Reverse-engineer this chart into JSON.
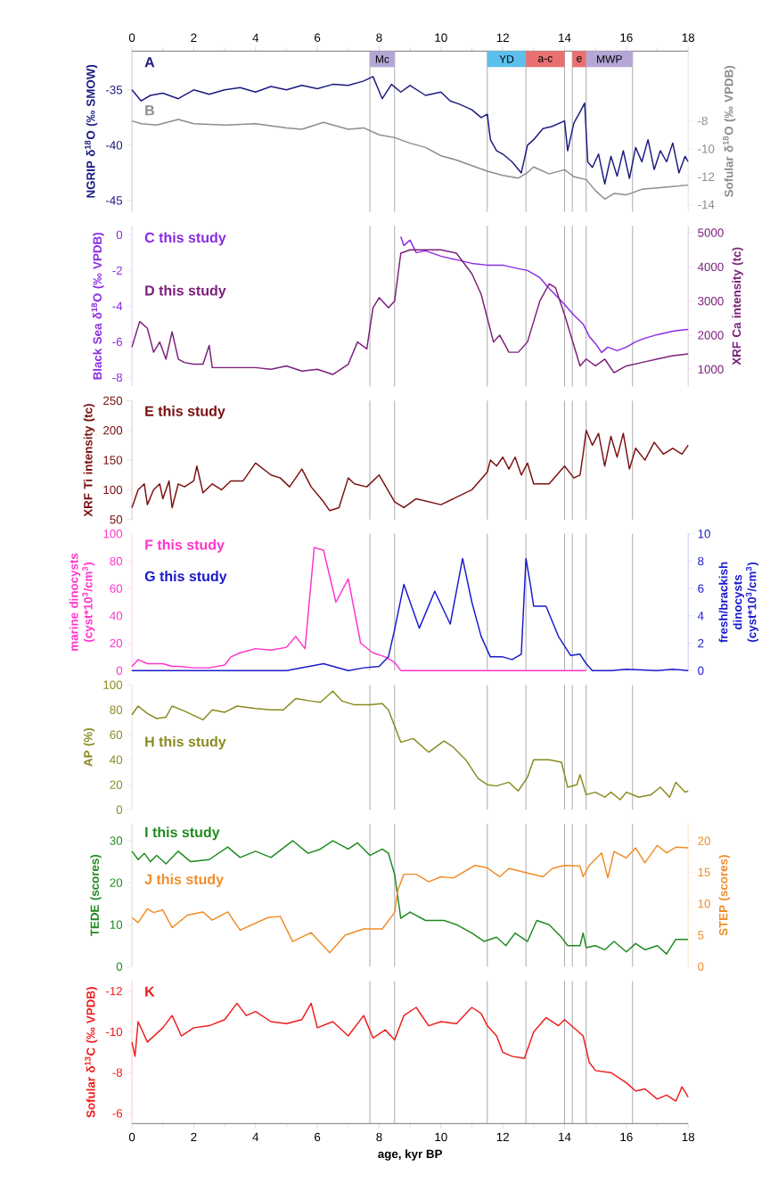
{
  "chart_data": [
    {
      "type": "line",
      "xlim": [
        0,
        18
      ],
      "xticks": [
        0,
        2,
        4,
        6,
        8,
        10,
        12,
        14,
        16,
        18
      ],
      "ylabel": "NGRIP δ$^{18}$O (‰ SMOW)",
      "ylim": [
        -46,
        -31.5
      ],
      "yticks": [
        -45,
        -40,
        -35
      ],
      "y2label": "Sofular δ$^{18}$O (‰ VPDB)",
      "y2lim": [
        -14.5,
        -3
      ],
      "y2ticks": [
        -14,
        -12,
        -10,
        -8
      ],
      "series": [
        {
          "name": "A",
          "color": "#1a1a80",
          "x": [
            0,
            0.3,
            0.6,
            1,
            1.5,
            2,
            2.5,
            3,
            3.5,
            4,
            4.5,
            5,
            5.5,
            6,
            6.5,
            7,
            7.5,
            7.8,
            8.1,
            8.4,
            8.7,
            9,
            9.5,
            10,
            10.3,
            10.6,
            11,
            11.3,
            11.5,
            11.6,
            11.8,
            12,
            12.3,
            12.6,
            12.8,
            13,
            13.3,
            13.6,
            14,
            14.1,
            14.3,
            14.5,
            14.65,
            14.75,
            14.9,
            15.1,
            15.3,
            15.5,
            15.7,
            15.9,
            16.1,
            16.3,
            16.5,
            16.7,
            16.9,
            17.1,
            17.3,
            17.5,
            17.7,
            17.9,
            18
          ],
          "values": [
            -35,
            -36,
            -35.5,
            -35.3,
            -35.8,
            -35,
            -35.4,
            -35,
            -34.8,
            -35.2,
            -34.7,
            -35,
            -34.6,
            -34.9,
            -34.5,
            -34.6,
            -34.2,
            -33.8,
            -35.8,
            -34.5,
            -35.2,
            -34.6,
            -35.5,
            -35.2,
            -36,
            -36.3,
            -36.8,
            -37.5,
            -37.2,
            -39.5,
            -40.5,
            -40.8,
            -41.5,
            -42.5,
            -40,
            -39.5,
            -38.5,
            -38.3,
            -37.8,
            -40.5,
            -38,
            -37,
            -36.2,
            -41.5,
            -42,
            -40.8,
            -43.5,
            -41,
            -42.8,
            -40.5,
            -43,
            -40.2,
            -41.5,
            -39.5,
            -42.2,
            -40.5,
            -41.5,
            -39.8,
            -42.5,
            -41,
            -41.5
          ]
        },
        {
          "name": "B",
          "color": "#8c8c8c",
          "axis": "y2",
          "x": [
            0,
            0.3,
            0.8,
            1.5,
            2,
            3,
            4,
            5,
            5.5,
            6.2,
            7,
            7.5,
            8,
            8.5,
            9,
            9.5,
            10,
            10.5,
            11,
            11.5,
            12,
            12.5,
            12.8,
            13,
            13.5,
            14,
            14.3,
            14.7,
            15,
            15.3,
            15.6,
            16,
            16.5,
            17,
            17.5,
            18
          ],
          "values": [
            -8,
            -8.2,
            -8.3,
            -7.9,
            -8.2,
            -8.3,
            -8.2,
            -8.5,
            -8.6,
            -8.1,
            -8.6,
            -8.5,
            -9,
            -9.2,
            -9.6,
            -9.9,
            -10.5,
            -10.8,
            -11.2,
            -11.6,
            -11.9,
            -12.1,
            -11.7,
            -11.3,
            -11.8,
            -11.5,
            -12,
            -12.2,
            -13,
            -13.6,
            -13.2,
            -13.3,
            -12.9,
            -12.8,
            -12.7,
            -12.6
          ]
        }
      ],
      "ref_lines": [
        {
          "axis": "x",
          "value": 7.7
        },
        {
          "axis": "x",
          "value": 8.5
        },
        {
          "axis": "x",
          "value": 11.5
        },
        {
          "axis": "x",
          "value": 12.75
        },
        {
          "axis": "x",
          "value": 14.0
        },
        {
          "axis": "x",
          "value": 14.25
        },
        {
          "axis": "x",
          "value": 14.7
        },
        {
          "axis": "x",
          "value": 16.2
        }
      ],
      "bands": [
        {
          "axis": "x",
          "from": 7.7,
          "to": 8.5,
          "label": "Mc",
          "color": "#b4a7d6"
        },
        {
          "axis": "x",
          "from": 11.5,
          "to": 12.75,
          "label": "YD",
          "color": "#5bc0eb"
        },
        {
          "axis": "x",
          "from": 12.75,
          "to": 14.0,
          "label": "a-c",
          "color": "#e87070"
        },
        {
          "axis": "x",
          "from": 14.25,
          "to": 14.7,
          "label": "e",
          "color": "#e87070"
        },
        {
          "axis": "x",
          "from": 14.7,
          "to": 16.2,
          "label": "MWP",
          "color": "#b4a7d6"
        }
      ]
    },
    {
      "type": "line",
      "xlim": [
        0,
        18
      ],
      "tick_labels": "y",
      "ylabel": "Black Sea δ$^{18}$O (‰ VPDB)",
      "ylim": [
        -8.5,
        0.5
      ],
      "yticks": [
        -8,
        -6,
        -4,
        -2,
        0
      ],
      "y2label": "XRF Ca intensity (tc)",
      "y2lim": [
        500,
        5200
      ],
      "y2ticks": [
        1000,
        2000,
        3000,
        4000,
        5000
      ],
      "series": [
        {
          "name": "C this study",
          "color": "#8a2be2",
          "x": [
            8.7,
            8.8,
            9,
            9.2,
            9.5,
            10,
            10.5,
            11,
            11.5,
            12,
            12.5,
            12.8,
            13.2,
            13.5,
            14,
            14.3,
            14.6,
            14.8,
            15,
            15.2,
            15.4,
            15.7,
            16,
            16.3,
            16.6,
            17,
            17.5,
            18
          ],
          "values": [
            -0.1,
            -0.6,
            -0.3,
            -1,
            -0.9,
            -1.2,
            -1.4,
            -1.6,
            -1.7,
            -1.7,
            -1.9,
            -2,
            -2.4,
            -3,
            -3.9,
            -4.5,
            -5,
            -5.7,
            -6.1,
            -6.6,
            -6.3,
            -6.5,
            -6.3,
            -6,
            -5.8,
            -5.6,
            -5.4,
            -5.3
          ]
        },
        {
          "name": "D this study",
          "color": "#7a1f7a",
          "axis": "y2",
          "x": [
            0,
            0.25,
            0.5,
            0.7,
            0.9,
            1.1,
            1.3,
            1.5,
            1.7,
            2,
            2.3,
            2.5,
            2.6,
            3,
            4,
            4.5,
            5,
            5.5,
            6,
            6.5,
            7,
            7.3,
            7.6,
            7.8,
            8,
            8.3,
            8.5,
            8.7,
            9,
            10,
            10.5,
            11,
            11.3,
            11.5,
            11.7,
            11.9,
            12.2,
            12.5,
            12.8,
            13.2,
            13.5,
            13.7,
            14,
            14.3,
            14.5,
            14.7,
            15,
            15.3,
            15.6,
            16,
            16.5,
            17,
            17.5,
            18
          ],
          "values": [
            1650,
            2400,
            2200,
            1500,
            1800,
            1300,
            2100,
            1300,
            1200,
            1150,
            1150,
            1700,
            1050,
            1050,
            1050,
            1000,
            1100,
            950,
            1000,
            850,
            1150,
            1800,
            1600,
            2800,
            3100,
            2800,
            3000,
            4400,
            4500,
            4500,
            4400,
            3800,
            3200,
            2500,
            1800,
            2000,
            1500,
            1500,
            1800,
            3000,
            3500,
            3400,
            2600,
            1700,
            1100,
            1300,
            1100,
            1300,
            900,
            1100,
            1200,
            1300,
            1400,
            1450
          ]
        }
      ],
      "ref_lines": [
        {
          "axis": "x",
          "value": 7.7
        },
        {
          "axis": "x",
          "value": 8.5
        },
        {
          "axis": "x",
          "value": 11.5
        },
        {
          "axis": "x",
          "value": 12.75
        },
        {
          "axis": "x",
          "value": 14.0
        },
        {
          "axis": "x",
          "value": 14.25
        },
        {
          "axis": "x",
          "value": 14.7
        },
        {
          "axis": "x",
          "value": 16.2
        }
      ]
    },
    {
      "type": "line",
      "xlim": [
        0,
        18
      ],
      "tick_labels": "y",
      "ylabel": "XRF Ti intensity (tc)",
      "ylim": [
        50,
        250
      ],
      "yticks": [
        50,
        100,
        150,
        200,
        250
      ],
      "series": [
        {
          "name": "E this study",
          "color": "#7a1010",
          "x": [
            0,
            0.2,
            0.4,
            0.5,
            0.7,
            0.9,
            1,
            1.2,
            1.3,
            1.5,
            1.7,
            2,
            2.1,
            2.3,
            2.6,
            2.9,
            3.2,
            3.6,
            4,
            4.5,
            4.8,
            5.1,
            5.5,
            5.8,
            6.2,
            6.4,
            6.7,
            7,
            7.2,
            7.6,
            8,
            8.5,
            8.8,
            9.2,
            10,
            11,
            11.5,
            11.6,
            11.8,
            12,
            12.2,
            12.4,
            12.6,
            12.8,
            13,
            13.5,
            14,
            14.3,
            14.5,
            14.6,
            14.7,
            14.9,
            15.1,
            15.3,
            15.5,
            15.7,
            15.9,
            16.1,
            16.3,
            16.6,
            16.9,
            17.2,
            17.5,
            17.8,
            18
          ],
          "values": [
            70,
            100,
            110,
            75,
            100,
            110,
            85,
            115,
            70,
            110,
            105,
            115,
            140,
            95,
            110,
            100,
            115,
            115,
            145,
            125,
            120,
            105,
            135,
            105,
            80,
            65,
            70,
            120,
            110,
            105,
            125,
            80,
            70,
            85,
            75,
            100,
            130,
            150,
            140,
            155,
            135,
            155,
            125,
            145,
            110,
            110,
            140,
            120,
            125,
            160,
            200,
            175,
            195,
            140,
            190,
            155,
            195,
            135,
            170,
            150,
            180,
            160,
            170,
            160,
            175
          ]
        }
      ],
      "ref_lines": [
        {
          "axis": "x",
          "value": 7.7
        },
        {
          "axis": "x",
          "value": 8.5
        },
        {
          "axis": "x",
          "value": 11.5
        },
        {
          "axis": "x",
          "value": 12.75
        },
        {
          "axis": "x",
          "value": 14.0
        },
        {
          "axis": "x",
          "value": 14.25
        },
        {
          "axis": "x",
          "value": 14.7
        },
        {
          "axis": "x",
          "value": 16.2
        }
      ]
    },
    {
      "type": "line",
      "xlim": [
        0,
        18
      ],
      "tick_labels": "y",
      "ylabel": "marine dinocysts (cyst*10$^{3}$/cm$^{3}$)",
      "ylim": [
        0,
        100
      ],
      "yticks": [
        0,
        20,
        40,
        60,
        80,
        100
      ],
      "y2label": "fresh/brackish dinocysts (cyst*10$^{3}$/cm$^{3}$)",
      "y2lim": [
        0,
        10
      ],
      "y2ticks": [
        0,
        2,
        4,
        6,
        8,
        10
      ],
      "series": [
        {
          "name": "F this study",
          "color": "#ff33cc",
          "x": [
            0,
            0.2,
            0.5,
            1,
            1.3,
            1.5,
            2,
            2.5,
            3,
            3.2,
            3.5,
            4,
            4.5,
            5,
            5.3,
            5.6,
            5.9,
            6.2,
            6.6,
            7,
            7.4,
            7.8,
            8.2,
            8.5,
            8.7,
            14.7
          ],
          "values": [
            3,
            8,
            5,
            5,
            3,
            3,
            2,
            2,
            4,
            10,
            13,
            16,
            15,
            17,
            25,
            16,
            90,
            88,
            50,
            67,
            20,
            13,
            10,
            6,
            0,
            0
          ]
        },
        {
          "name": "G this study",
          "color": "#1a1acc",
          "axis": "y2",
          "x": [
            0,
            5,
            6.2,
            7,
            7.5,
            8,
            8.3,
            8.5,
            8.8,
            9.3,
            9.8,
            10.3,
            10.7,
            11,
            11.3,
            11.6,
            12,
            12.3,
            12.6,
            12.75,
            12.9,
            13,
            13.4,
            13.8,
            14.2,
            14.5,
            14.7,
            14.9,
            15.5,
            16,
            17,
            17.5,
            18
          ],
          "values": [
            0,
            0,
            0.5,
            0,
            0.2,
            0.3,
            1,
            3,
            6.3,
            3.1,
            5.8,
            3.4,
            8.2,
            5,
            2.5,
            1,
            1,
            0.8,
            1.2,
            8.2,
            6.2,
            4.7,
            4.7,
            2.5,
            1.1,
            1.2,
            0.5,
            0,
            0,
            0.1,
            0,
            0.1,
            0
          ]
        }
      ],
      "ref_lines": [
        {
          "axis": "x",
          "value": 7.7
        },
        {
          "axis": "x",
          "value": 8.5
        },
        {
          "axis": "x",
          "value": 11.5
        },
        {
          "axis": "x",
          "value": 12.75
        },
        {
          "axis": "x",
          "value": 14.0
        },
        {
          "axis": "x",
          "value": 14.25
        },
        {
          "axis": "x",
          "value": 14.7
        },
        {
          "axis": "x",
          "value": 16.2
        }
      ]
    },
    {
      "type": "line",
      "xlim": [
        0,
        18
      ],
      "tick_labels": "y",
      "ylabel": "AP (%)",
      "ylim": [
        0,
        100
      ],
      "yticks": [
        0,
        20,
        40,
        60,
        80,
        100
      ],
      "series": [
        {
          "name": "H this study",
          "color": "#8a8a20",
          "x": [
            0,
            0.2,
            0.5,
            0.8,
            1.1,
            1.3,
            1.7,
            2.3,
            2.6,
            3,
            3.4,
            4,
            4.5,
            4.9,
            5.3,
            5.8,
            6.1,
            6.5,
            6.8,
            7.2,
            7.7,
            8.1,
            8.3,
            8.7,
            9.1,
            9.6,
            10.1,
            10.4,
            10.8,
            11.2,
            11.5,
            11.8,
            12.2,
            12.5,
            12.8,
            13,
            13.5,
            13.9,
            14.1,
            14.4,
            14.5,
            14.7,
            15,
            15.3,
            15.5,
            15.8,
            16,
            16.4,
            16.8,
            17.1,
            17.4,
            17.6,
            17.9,
            18
          ],
          "values": [
            76,
            83,
            77,
            73,
            74,
            83,
            79,
            72,
            80,
            78,
            83,
            81,
            80,
            80,
            89,
            87,
            86,
            95,
            87,
            84,
            84,
            85,
            80,
            54,
            57,
            46,
            55,
            50,
            40,
            25,
            20,
            19,
            22,
            15,
            26,
            40,
            40,
            38,
            18,
            20,
            28,
            12,
            14,
            10,
            14,
            8,
            14,
            10,
            12,
            18,
            10,
            22,
            14,
            15
          ]
        }
      ],
      "ref_lines": [
        {
          "axis": "x",
          "value": 7.7
        },
        {
          "axis": "x",
          "value": 8.5
        },
        {
          "axis": "x",
          "value": 11.5
        },
        {
          "axis": "x",
          "value": 12.75
        },
        {
          "axis": "x",
          "value": 14.0
        },
        {
          "axis": "x",
          "value": 14.25
        },
        {
          "axis": "x",
          "value": 14.7
        },
        {
          "axis": "x",
          "value": 16.2
        }
      ]
    },
    {
      "type": "line",
      "xlim": [
        0,
        18
      ],
      "tick_labels": "y",
      "ylabel": "TEDE (scores)",
      "ylim": [
        0,
        34
      ],
      "yticks": [
        0,
        10,
        20,
        30
      ],
      "y2label": "STEP (scores)",
      "y2lim": [
        0,
        22.7
      ],
      "y2ticks": [
        0,
        5,
        10,
        15,
        20
      ],
      "series": [
        {
          "name": "I this study",
          "color": "#1e8a1e",
          "x": [
            0,
            0.2,
            0.4,
            0.6,
            0.8,
            1.1,
            1.5,
            1.9,
            2.5,
            3.1,
            3.5,
            4,
            4.5,
            5.2,
            5.7,
            6.1,
            6.5,
            7,
            7.3,
            7.7,
            8.1,
            8.3,
            8.5,
            8.7,
            9,
            9.5,
            10.1,
            10.5,
            11,
            11.4,
            11.8,
            12.1,
            12.4,
            12.8,
            13.1,
            13.5,
            13.9,
            14.1,
            14.5,
            14.6,
            14.7,
            15,
            15.3,
            15.6,
            16,
            16.3,
            16.6,
            17,
            17.3,
            17.6,
            18
          ],
          "values": [
            27.5,
            25.5,
            27,
            25,
            26.5,
            24.5,
            27.5,
            25,
            25.5,
            28.5,
            26,
            27.5,
            26,
            30,
            27,
            28,
            30,
            28,
            29.5,
            26.5,
            28,
            27,
            22,
            11.5,
            13,
            11,
            11,
            10,
            8,
            6,
            7,
            5,
            8,
            6,
            11,
            10,
            7,
            5,
            5,
            8,
            4.5,
            5,
            4,
            6,
            3.5,
            5.5,
            4,
            5,
            3,
            6.5,
            6.5
          ]
        },
        {
          "name": "J this study",
          "color": "#f08c28",
          "axis": "y2",
          "x": [
            0,
            0.2,
            0.5,
            0.7,
            1,
            1.3,
            1.8,
            2.3,
            2.6,
            3.1,
            3.5,
            4.4,
            4.8,
            5.2,
            5.8,
            6.4,
            6.9,
            7.5,
            8.1,
            8.5,
            8.6,
            8.8,
            9.2,
            9.6,
            10,
            10.4,
            11.1,
            11.5,
            11.9,
            12.2,
            12.8,
            13.3,
            13.6,
            14,
            14.5,
            14.6,
            14.8,
            15.2,
            15.4,
            15.6,
            16,
            16.3,
            16.6,
            17,
            17.3,
            17.6,
            18
          ],
          "values": [
            7.8,
            7,
            9.2,
            8.6,
            9,
            6.2,
            8.2,
            8.7,
            7.4,
            8.7,
            5.8,
            7.8,
            8,
            4,
            5.4,
            2.2,
            5,
            6,
            6,
            8.6,
            12.1,
            14.7,
            14.7,
            13.5,
            14.3,
            14.1,
            16.1,
            15.7,
            14.3,
            15.6,
            14.9,
            14.3,
            15.6,
            16.1,
            16,
            14.3,
            16.1,
            18.1,
            14.1,
            18.3,
            17.3,
            18.9,
            16.5,
            19.3,
            18.1,
            19,
            18.9
          ]
        }
      ],
      "ref_lines": [
        {
          "axis": "x",
          "value": 7.7
        },
        {
          "axis": "x",
          "value": 8.5
        },
        {
          "axis": "x",
          "value": 11.5
        },
        {
          "axis": "x",
          "value": 12.75
        },
        {
          "axis": "x",
          "value": 14.0
        },
        {
          "axis": "x",
          "value": 14.25
        },
        {
          "axis": "x",
          "value": 14.7
        },
        {
          "axis": "x",
          "value": 16.2
        }
      ]
    },
    {
      "type": "line",
      "xlim": [
        0,
        18
      ],
      "xticks": [
        0,
        2,
        4,
        6,
        8,
        10,
        12,
        14,
        16,
        18
      ],
      "xlabel": "age, kyr BP",
      "ylabel": "Sofular δ$^{13}$C (‰ VPDB)",
      "ylim": [
        -5.5,
        -12.5
      ],
      "yticks": [
        -12,
        -10,
        -8,
        -6
      ],
      "series": [
        {
          "name": "K",
          "color": "#ee1c1c",
          "x": [
            0,
            0.1,
            0.2,
            0.5,
            1,
            1.3,
            1.6,
            2,
            2.5,
            3,
            3.4,
            3.7,
            4,
            4.5,
            5,
            5.5,
            5.8,
            6,
            6.5,
            7,
            7.5,
            7.8,
            8.2,
            8.5,
            8.8,
            9.2,
            9.6,
            10,
            10.5,
            11,
            11.3,
            11.5,
            11.8,
            12,
            12.3,
            12.7,
            13,
            13.4,
            13.8,
            14,
            14.3,
            14.6,
            14.8,
            15,
            15.5,
            16,
            16.3,
            16.6,
            17,
            17.3,
            17.6,
            17.8,
            18
          ],
          "values": [
            -9.5,
            -8.8,
            -10.5,
            -9.5,
            -10.2,
            -10.8,
            -9.8,
            -10.2,
            -10.3,
            -10.6,
            -11.4,
            -10.8,
            -11,
            -10.5,
            -10.4,
            -10.6,
            -11.4,
            -10.2,
            -10.5,
            -9.8,
            -10.8,
            -9.7,
            -10.1,
            -9.6,
            -10.8,
            -11.2,
            -10.3,
            -10.5,
            -10.4,
            -11.2,
            -10.9,
            -10.3,
            -9.8,
            -9,
            -8.8,
            -8.7,
            -10,
            -10.7,
            -10.3,
            -10.6,
            -10.2,
            -9.8,
            -8.5,
            -8.1,
            -8,
            -7.5,
            -7.1,
            -7.2,
            -6.7,
            -6.9,
            -6.6,
            -7.3,
            -6.8
          ]
        }
      ],
      "ref_lines": [
        {
          "axis": "x",
          "value": 7.7
        },
        {
          "axis": "x",
          "value": 8.5
        },
        {
          "axis": "x",
          "value": 11.5
        },
        {
          "axis": "x",
          "value": 12.75
        },
        {
          "axis": "x",
          "value": 14.0
        },
        {
          "axis": "x",
          "value": 14.25
        },
        {
          "axis": "x",
          "value": 14.7
        },
        {
          "axis": "x",
          "value": 16.2
        }
      ]
    }
  ]
}
